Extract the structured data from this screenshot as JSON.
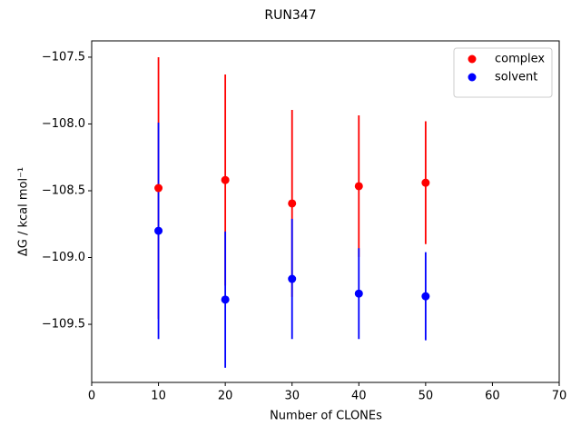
{
  "chart_data": {
    "type": "scatter",
    "title": "RUN347",
    "x_label": "Number of CLONEs",
    "y_label": "ΔG / kcal mol⁻¹",
    "x": [
      10,
      20,
      30,
      40,
      50
    ],
    "series": [
      {
        "name": "complex",
        "color": "#ff0000",
        "values": [
          -108.48,
          -108.42,
          -108.595,
          -108.466,
          -108.44
        ],
        "errors": [
          0.98,
          0.79,
          0.7,
          0.53,
          0.46
        ]
      },
      {
        "name": "solvent",
        "color": "#0000ff",
        "values": [
          -108.8,
          -109.315,
          -109.16,
          -109.27,
          -109.29
        ],
        "errors": [
          0.81,
          0.51,
          0.45,
          0.34,
          0.33
        ]
      }
    ],
    "xlim": [
      0,
      70
    ],
    "xticks": [
      0,
      10,
      20,
      30,
      40,
      50,
      60,
      70
    ],
    "ylim": [
      -109.935,
      -107.378
    ],
    "yticks": [
      {
        "value": -109.5,
        "label": "−109.5"
      },
      {
        "value": -109.0,
        "label": "−109.0"
      },
      {
        "value": -108.5,
        "label": "−108.5"
      },
      {
        "value": -108.0,
        "label": "−108.0"
      },
      {
        "value": -107.5,
        "label": "−107.5"
      }
    ],
    "grid": false,
    "legend": "upper right"
  }
}
